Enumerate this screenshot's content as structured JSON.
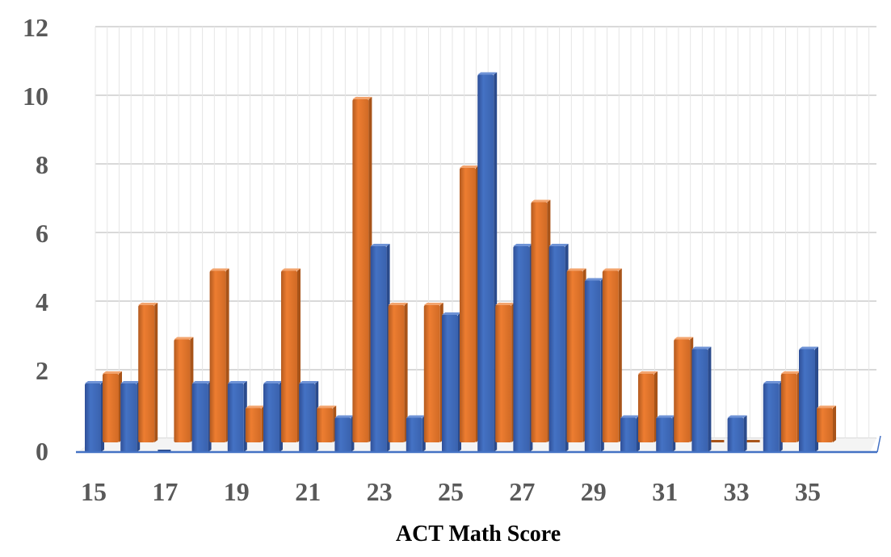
{
  "chart_data": {
    "type": "bar",
    "title": "",
    "xlabel": "ACT Math Score",
    "ylabel": "",
    "categories": [
      15,
      16,
      17,
      18,
      19,
      20,
      21,
      22,
      23,
      24,
      25,
      26,
      27,
      28,
      29,
      30,
      31,
      32,
      33,
      34,
      35
    ],
    "x_tick_labels": [
      "15",
      "17",
      "19",
      "21",
      "23",
      "25",
      "27",
      "29",
      "31",
      "33",
      "35"
    ],
    "y_tick_labels": [
      "0",
      "2",
      "4",
      "6",
      "8",
      "10",
      "12"
    ],
    "ylim": [
      0,
      12
    ],
    "grid": true,
    "legend": "none",
    "series": [
      {
        "color": "#4472C4",
        "values": [
          2,
          2,
          0,
          2,
          2,
          2,
          2,
          1,
          6,
          1,
          4,
          11,
          6,
          6,
          5,
          1,
          1,
          3,
          1,
          2,
          3
        ]
      },
      {
        "color": "#ED7D31",
        "values": [
          2,
          4,
          3,
          5,
          1,
          5,
          1,
          10,
          4,
          4,
          8,
          4,
          7,
          5,
          5,
          2,
          3,
          0,
          0,
          2,
          1
        ]
      }
    ]
  }
}
